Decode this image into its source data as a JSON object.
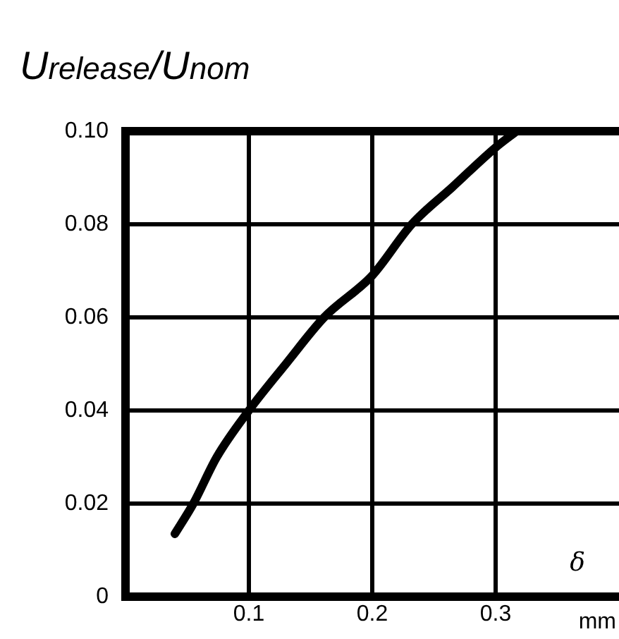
{
  "chart_data": {
    "type": "line",
    "ylabel": "U$_{release}$/U$_{nom}$",
    "xlabel": "mm",
    "annotations": [
      "δ"
    ],
    "x": [
      0.04,
      0.055,
      0.074,
      0.1,
      0.13,
      0.161,
      0.2,
      0.232,
      0.265,
      0.3,
      0.317
    ],
    "series": [
      {
        "color": "#000000",
        "values": [
          0.0135,
          0.02,
          0.03,
          0.04,
          0.05,
          0.06,
          0.069,
          0.08,
          0.088,
          0.0965,
          0.1
        ]
      }
    ],
    "xlim": [
      0,
      0.4
    ],
    "xticks": [
      0.1,
      0.2,
      0.3
    ],
    "ylim": [
      0,
      0.1
    ],
    "yticks": [
      0,
      0.02,
      0.04,
      0.06,
      0.08,
      {
        "value": 0.1,
        "label": "0.10"
      }
    ],
    "grid": true,
    "legend": false,
    "marker": "none",
    "line_style": "solid"
  }
}
